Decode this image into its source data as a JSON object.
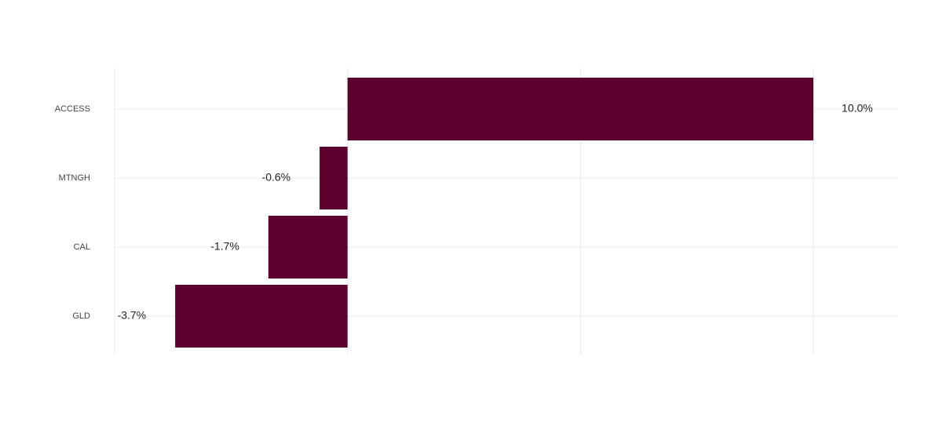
{
  "chart_data": {
    "type": "hbar",
    "categories": [
      "ACCESS",
      "MTNGH",
      "CAL",
      "GLD"
    ],
    "values": [
      10.0,
      -0.6,
      -1.7,
      -3.7
    ],
    "value_labels": [
      "10.0%",
      "-0.6%",
      "-1.7%",
      "-3.7%"
    ],
    "color": "#5c002e",
    "xlim": [
      -5,
      11.8
    ],
    "xticks": [
      -5,
      0,
      5,
      10
    ],
    "grid": true
  }
}
